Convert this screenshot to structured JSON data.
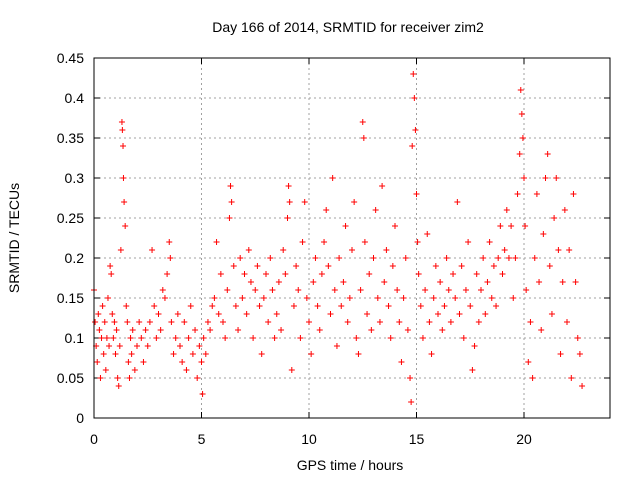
{
  "chart_data": {
    "type": "scatter",
    "title": "Day 166 of 2014, SRMTID for receiver zim2",
    "xlabel": "GPS time / hours",
    "ylabel": "SRMTID / TECUs",
    "xlim": [
      0,
      24
    ],
    "ylim": [
      0,
      0.45
    ],
    "xticks": [
      0,
      5,
      10,
      15,
      20
    ],
    "xtick_labels": [
      "0",
      "5",
      "10",
      "15",
      "20"
    ],
    "yticks": [
      0,
      0.05,
      0.1,
      0.15,
      0.2,
      0.25,
      0.3,
      0.35,
      0.4,
      0.45
    ],
    "ytick_labels": [
      "0",
      "0.05",
      "0.1",
      "0.15",
      "0.2",
      "0.25",
      "0.3",
      "0.35",
      "0.4",
      "0.45"
    ],
    "grid": true,
    "marker": "+",
    "color": "#ff0000",
    "series": [
      {
        "name": "SRMTID",
        "points": [
          [
            0.0,
            0.16
          ],
          [
            0.05,
            0.12
          ],
          [
            0.1,
            0.09
          ],
          [
            0.15,
            0.07
          ],
          [
            0.2,
            0.13
          ],
          [
            0.25,
            0.11
          ],
          [
            0.3,
            0.05
          ],
          [
            0.35,
            0.1
          ],
          [
            0.4,
            0.14
          ],
          [
            0.45,
            0.08
          ],
          [
            0.5,
            0.12
          ],
          [
            0.55,
            0.06
          ],
          [
            0.6,
            0.1
          ],
          [
            0.65,
            0.15
          ],
          [
            0.7,
            0.09
          ],
          [
            0.75,
            0.19
          ],
          [
            0.8,
            0.18
          ],
          [
            0.85,
            0.13
          ],
          [
            0.9,
            0.1
          ],
          [
            0.95,
            0.12
          ],
          [
            1.0,
            0.08
          ],
          [
            1.05,
            0.11
          ],
          [
            1.1,
            0.05
          ],
          [
            1.15,
            0.04
          ],
          [
            1.2,
            0.09
          ],
          [
            1.25,
            0.21
          ],
          [
            1.3,
            0.37
          ],
          [
            1.32,
            0.36
          ],
          [
            1.35,
            0.34
          ],
          [
            1.37,
            0.3
          ],
          [
            1.4,
            0.27
          ],
          [
            1.45,
            0.24
          ],
          [
            1.5,
            0.14
          ],
          [
            1.55,
            0.12
          ],
          [
            1.6,
            0.07
          ],
          [
            1.65,
            0.05
          ],
          [
            1.7,
            0.1
          ],
          [
            1.75,
            0.08
          ],
          [
            1.8,
            0.11
          ],
          [
            1.9,
            0.06
          ],
          [
            2.0,
            0.09
          ],
          [
            2.1,
            0.12
          ],
          [
            2.2,
            0.1
          ],
          [
            2.3,
            0.07
          ],
          [
            2.4,
            0.11
          ],
          [
            2.5,
            0.09
          ],
          [
            2.6,
            0.12
          ],
          [
            2.7,
            0.21
          ],
          [
            2.8,
            0.14
          ],
          [
            2.9,
            0.1
          ],
          [
            3.0,
            0.13
          ],
          [
            3.1,
            0.11
          ],
          [
            3.2,
            0.16
          ],
          [
            3.3,
            0.15
          ],
          [
            3.4,
            0.18
          ],
          [
            3.5,
            0.22
          ],
          [
            3.55,
            0.2
          ],
          [
            3.6,
            0.12
          ],
          [
            3.7,
            0.08
          ],
          [
            3.8,
            0.1
          ],
          [
            3.9,
            0.13
          ],
          [
            4.0,
            0.09
          ],
          [
            4.1,
            0.07
          ],
          [
            4.2,
            0.12
          ],
          [
            4.3,
            0.06
          ],
          [
            4.4,
            0.1
          ],
          [
            4.5,
            0.14
          ],
          [
            4.6,
            0.08
          ],
          [
            4.7,
            0.11
          ],
          [
            4.8,
            0.05
          ],
          [
            4.9,
            0.09
          ],
          [
            5.0,
            0.07
          ],
          [
            5.05,
            0.03
          ],
          [
            5.1,
            0.1
          ],
          [
            5.2,
            0.08
          ],
          [
            5.3,
            0.12
          ],
          [
            5.4,
            0.11
          ],
          [
            5.5,
            0.14
          ],
          [
            5.6,
            0.15
          ],
          [
            5.7,
            0.22
          ],
          [
            5.8,
            0.13
          ],
          [
            5.9,
            0.18
          ],
          [
            6.0,
            0.12
          ],
          [
            6.1,
            0.1
          ],
          [
            6.2,
            0.16
          ],
          [
            6.3,
            0.25
          ],
          [
            6.35,
            0.29
          ],
          [
            6.4,
            0.27
          ],
          [
            6.5,
            0.19
          ],
          [
            6.6,
            0.14
          ],
          [
            6.7,
            0.11
          ],
          [
            6.8,
            0.2
          ],
          [
            6.9,
            0.15
          ],
          [
            7.0,
            0.18
          ],
          [
            7.1,
            0.13
          ],
          [
            7.2,
            0.21
          ],
          [
            7.3,
            0.17
          ],
          [
            7.4,
            0.1
          ],
          [
            7.5,
            0.16
          ],
          [
            7.6,
            0.19
          ],
          [
            7.7,
            0.14
          ],
          [
            7.8,
            0.08
          ],
          [
            7.9,
            0.15
          ],
          [
            8.0,
            0.18
          ],
          [
            8.1,
            0.12
          ],
          [
            8.2,
            0.2
          ],
          [
            8.3,
            0.16
          ],
          [
            8.4,
            0.1
          ],
          [
            8.5,
            0.13
          ],
          [
            8.6,
            0.17
          ],
          [
            8.7,
            0.11
          ],
          [
            8.8,
            0.21
          ],
          [
            8.9,
            0.18
          ],
          [
            9.0,
            0.25
          ],
          [
            9.05,
            0.29
          ],
          [
            9.1,
            0.27
          ],
          [
            9.2,
            0.06
          ],
          [
            9.3,
            0.14
          ],
          [
            9.4,
            0.19
          ],
          [
            9.5,
            0.16
          ],
          [
            9.6,
            0.1
          ],
          [
            9.7,
            0.22
          ],
          [
            9.8,
            0.27
          ],
          [
            9.9,
            0.15
          ],
          [
            10.0,
            0.12
          ],
          [
            10.1,
            0.08
          ],
          [
            10.2,
            0.17
          ],
          [
            10.3,
            0.2
          ],
          [
            10.4,
            0.14
          ],
          [
            10.5,
            0.11
          ],
          [
            10.6,
            0.18
          ],
          [
            10.7,
            0.22
          ],
          [
            10.8,
            0.26
          ],
          [
            10.9,
            0.19
          ],
          [
            11.0,
            0.13
          ],
          [
            11.1,
            0.3
          ],
          [
            11.2,
            0.16
          ],
          [
            11.3,
            0.09
          ],
          [
            11.4,
            0.2
          ],
          [
            11.5,
            0.14
          ],
          [
            11.6,
            0.17
          ],
          [
            11.7,
            0.24
          ],
          [
            11.8,
            0.12
          ],
          [
            11.9,
            0.15
          ],
          [
            12.0,
            0.21
          ],
          [
            12.1,
            0.27
          ],
          [
            12.2,
            0.1
          ],
          [
            12.3,
            0.08
          ],
          [
            12.4,
            0.16
          ],
          [
            12.5,
            0.37
          ],
          [
            12.55,
            0.35
          ],
          [
            12.6,
            0.22
          ],
          [
            12.7,
            0.13
          ],
          [
            12.8,
            0.18
          ],
          [
            12.9,
            0.11
          ],
          [
            13.0,
            0.2
          ],
          [
            13.1,
            0.26
          ],
          [
            13.2,
            0.15
          ],
          [
            13.3,
            0.12
          ],
          [
            13.4,
            0.29
          ],
          [
            13.5,
            0.17
          ],
          [
            13.6,
            0.21
          ],
          [
            13.7,
            0.14
          ],
          [
            13.8,
            0.1
          ],
          [
            13.9,
            0.19
          ],
          [
            14.0,
            0.24
          ],
          [
            14.1,
            0.16
          ],
          [
            14.2,
            0.12
          ],
          [
            14.3,
            0.07
          ],
          [
            14.4,
            0.15
          ],
          [
            14.5,
            0.2
          ],
          [
            14.6,
            0.11
          ],
          [
            14.7,
            0.05
          ],
          [
            14.75,
            0.02
          ],
          [
            14.8,
            0.34
          ],
          [
            14.85,
            0.43
          ],
          [
            14.9,
            0.4
          ],
          [
            14.95,
            0.36
          ],
          [
            15.0,
            0.28
          ],
          [
            15.05,
            0.22
          ],
          [
            15.1,
            0.18
          ],
          [
            15.2,
            0.14
          ],
          [
            15.3,
            0.1
          ],
          [
            15.4,
            0.16
          ],
          [
            15.5,
            0.23
          ],
          [
            15.6,
            0.12
          ],
          [
            15.7,
            0.08
          ],
          [
            15.8,
            0.15
          ],
          [
            15.9,
            0.19
          ],
          [
            16.0,
            0.13
          ],
          [
            16.1,
            0.17
          ],
          [
            16.2,
            0.11
          ],
          [
            16.3,
            0.14
          ],
          [
            16.4,
            0.2
          ],
          [
            16.5,
            0.16
          ],
          [
            16.6,
            0.12
          ],
          [
            16.7,
            0.18
          ],
          [
            16.8,
            0.15
          ],
          [
            16.9,
            0.27
          ],
          [
            17.0,
            0.13
          ],
          [
            17.1,
            0.19
          ],
          [
            17.2,
            0.1
          ],
          [
            17.3,
            0.16
          ],
          [
            17.4,
            0.22
          ],
          [
            17.5,
            0.14
          ],
          [
            17.6,
            0.06
          ],
          [
            17.7,
            0.09
          ],
          [
            17.8,
            0.18
          ],
          [
            17.9,
            0.12
          ],
          [
            18.0,
            0.16
          ],
          [
            18.1,
            0.2
          ],
          [
            18.2,
            0.13
          ],
          [
            18.3,
            0.17
          ],
          [
            18.4,
            0.22
          ],
          [
            18.5,
            0.15
          ],
          [
            18.6,
            0.19
          ],
          [
            18.7,
            0.14
          ],
          [
            18.8,
            0.2
          ],
          [
            18.9,
            0.24
          ],
          [
            19.0,
            0.18
          ],
          [
            19.1,
            0.21
          ],
          [
            19.2,
            0.26
          ],
          [
            19.3,
            0.2
          ],
          [
            19.4,
            0.24
          ],
          [
            19.5,
            0.15
          ],
          [
            19.6,
            0.2
          ],
          [
            19.7,
            0.28
          ],
          [
            19.8,
            0.33
          ],
          [
            19.85,
            0.41
          ],
          [
            19.9,
            0.38
          ],
          [
            19.95,
            0.35
          ],
          [
            20.0,
            0.3
          ],
          [
            20.05,
            0.24
          ],
          [
            20.1,
            0.16
          ],
          [
            20.2,
            0.07
          ],
          [
            20.3,
            0.12
          ],
          [
            20.4,
            0.05
          ],
          [
            20.5,
            0.2
          ],
          [
            20.6,
            0.28
          ],
          [
            20.7,
            0.17
          ],
          [
            20.8,
            0.11
          ],
          [
            20.9,
            0.23
          ],
          [
            21.0,
            0.3
          ],
          [
            21.1,
            0.33
          ],
          [
            21.2,
            0.19
          ],
          [
            21.3,
            0.13
          ],
          [
            21.4,
            0.25
          ],
          [
            21.5,
            0.3
          ],
          [
            21.6,
            0.21
          ],
          [
            21.7,
            0.08
          ],
          [
            21.8,
            0.17
          ],
          [
            21.9,
            0.26
          ],
          [
            22.0,
            0.12
          ],
          [
            22.1,
            0.21
          ],
          [
            22.2,
            0.05
          ],
          [
            22.3,
            0.28
          ],
          [
            22.4,
            0.17
          ],
          [
            22.5,
            0.1
          ],
          [
            22.6,
            0.08
          ],
          [
            22.7,
            0.04
          ]
        ]
      }
    ]
  }
}
